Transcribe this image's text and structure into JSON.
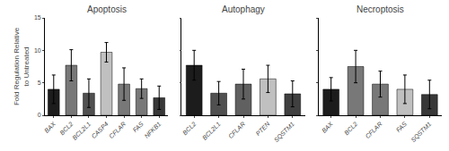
{
  "chart_data": [
    {
      "type": "bar",
      "title": "Apoptosis",
      "categories": [
        "BAX",
        "BCL2",
        "BCL2L1",
        "CASP4",
        "CFLAR",
        "FAS",
        "NFKB1"
      ],
      "values": [
        4.0,
        7.7,
        3.4,
        9.7,
        4.8,
        4.1,
        2.7
      ],
      "errors": [
        2.2,
        2.4,
        2.2,
        1.5,
        2.5,
        1.5,
        1.8
      ],
      "colors": [
        "#1c1c1c",
        "#787878",
        "#505050",
        "#c0c0c0",
        "#787878",
        "#787878",
        "#383838"
      ],
      "ylabel": "Fold Regulation Relative\nto Untreated",
      "ylim": [
        0,
        15
      ],
      "yticks": [
        0,
        5,
        10,
        15
      ],
      "grid": false
    },
    {
      "type": "bar",
      "title": "Autophagy",
      "categories": [
        "BCL2",
        "BCL2L1",
        "CFLAR",
        "PTEN",
        "SQSTM1"
      ],
      "values": [
        7.7,
        3.4,
        4.8,
        5.6,
        3.3
      ],
      "errors": [
        2.3,
        1.8,
        2.3,
        2.1,
        2.0
      ],
      "colors": [
        "#1c1c1c",
        "#505050",
        "#606060",
        "#c0c0c0",
        "#404040"
      ],
      "ylim": [
        0,
        15
      ],
      "yticks": [
        0,
        5,
        10,
        15
      ],
      "grid": false,
      "tick_labels": "x"
    },
    {
      "type": "bar",
      "title": "Necroptosis",
      "categories": [
        "BAX",
        "BCL2",
        "CFLAR",
        "FAS",
        "SQSTM1"
      ],
      "values": [
        4.0,
        7.5,
        4.8,
        4.0,
        3.2
      ],
      "errors": [
        1.8,
        2.5,
        2.0,
        2.2,
        2.2
      ],
      "colors": [
        "#1c1c1c",
        "#787878",
        "#787878",
        "#c0c0c0",
        "#383838"
      ],
      "ylim": [
        0,
        15
      ],
      "yticks": [
        0,
        5,
        10,
        15
      ],
      "grid": false,
      "tick_labels": "x"
    }
  ]
}
